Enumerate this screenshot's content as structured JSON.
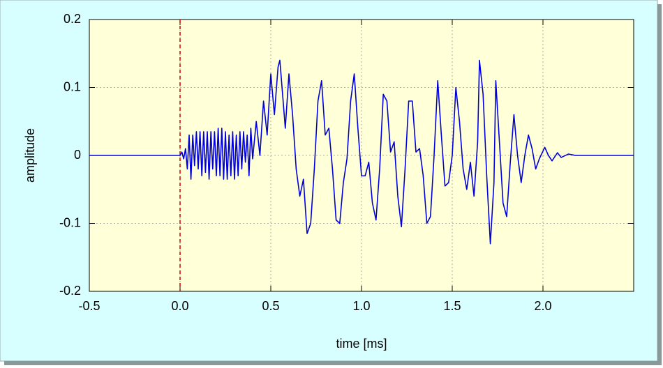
{
  "chart_data": {
    "type": "line",
    "x_label": "time [ms]",
    "y_label": "amplitude",
    "xlim": [
      -0.5,
      2.5
    ],
    "ylim": [
      -0.2,
      0.2
    ],
    "xticks": [
      -0.5,
      {
        "value": 0,
        "label": "0.0"
      },
      0.5,
      {
        "value": 1,
        "label": "1.0"
      },
      1.5,
      {
        "value": 2,
        "label": "2.0"
      }
    ],
    "yticks": [
      -0.2,
      -0.1,
      0,
      0.1,
      0.2
    ],
    "grid": true,
    "vline": {
      "x": 0,
      "color": "#cc0000",
      "style": "dashed"
    },
    "series": [
      {
        "color": "#0000dd",
        "x": [
          -0.5,
          0,
          0.01,
          0.02,
          0.03,
          0.04,
          0.05,
          0.06,
          0.07,
          0.08,
          0.09,
          0.1,
          0.11,
          0.12,
          0.13,
          0.14,
          0.15,
          0.16,
          0.17,
          0.18,
          0.19,
          0.2,
          0.21,
          0.22,
          0.23,
          0.24,
          0.25,
          0.26,
          0.27,
          0.28,
          0.29,
          0.3,
          0.31,
          0.32,
          0.33,
          0.34,
          0.35,
          0.36,
          0.37,
          0.38,
          0.39,
          0.4,
          0.42,
          0.44,
          0.46,
          0.48,
          0.5,
          0.52,
          0.54,
          0.55,
          0.58,
          0.6,
          0.62,
          0.64,
          0.66,
          0.68,
          0.7,
          0.72,
          0.74,
          0.76,
          0.78,
          0.8,
          0.82,
          0.84,
          0.86,
          0.88,
          0.9,
          0.92,
          0.94,
          0.96,
          0.98,
          1,
          1.02,
          1.04,
          1.06,
          1.08,
          1.1,
          1.12,
          1.14,
          1.16,
          1.18,
          1.2,
          1.22,
          1.24,
          1.26,
          1.28,
          1.3,
          1.32,
          1.34,
          1.36,
          1.38,
          1.4,
          1.42,
          1.44,
          1.46,
          1.48,
          1.5,
          1.52,
          1.54,
          1.56,
          1.58,
          1.6,
          1.62,
          1.64,
          1.65,
          1.67,
          1.69,
          1.71,
          1.73,
          1.74,
          1.76,
          1.78,
          1.8,
          1.82,
          1.84,
          1.86,
          1.88,
          1.9,
          1.92,
          1.94,
          1.96,
          1.98,
          2.01,
          2.03,
          2.05,
          2.08,
          2.1,
          2.14,
          2.18,
          2.5
        ],
        "values": [
          0,
          0,
          0.005,
          -0.005,
          0.01,
          -0.02,
          0.03,
          -0.035,
          0.03,
          -0.015,
          0.035,
          -0.02,
          0.035,
          -0.03,
          0.035,
          -0.025,
          0.035,
          -0.035,
          0.035,
          -0.02,
          0.035,
          -0.03,
          0.04,
          -0.03,
          0.04,
          -0.035,
          0.035,
          -0.035,
          0.03,
          -0.03,
          0.035,
          -0.035,
          0.03,
          -0.03,
          0.035,
          -0.02,
          0.035,
          -0.01,
          0.03,
          -0.03,
          0.04,
          -0.005,
          0.05,
          0,
          0.08,
          0.03,
          0.12,
          0.06,
          0.13,
          0.14,
          0.04,
          0.12,
          0.06,
          -0.02,
          -0.06,
          -0.035,
          -0.115,
          -0.1,
          -0.02,
          0.08,
          0.11,
          0.03,
          0.04,
          -0.02,
          -0.095,
          -0.1,
          -0.04,
          -0.005,
          0.08,
          0.12,
          0.04,
          -0.03,
          -0.03,
          -0.01,
          -0.07,
          -0.095,
          -0.02,
          0.09,
          0.08,
          0.005,
          0.02,
          -0.06,
          -0.105,
          -0.02,
          0.08,
          0.08,
          0.005,
          0.01,
          -0.03,
          -0.1,
          -0.09,
          0,
          0.11,
          0.03,
          -0.045,
          -0.04,
          0,
          0.1,
          0.05,
          -0.02,
          -0.05,
          -0.01,
          -0.06,
          0.02,
          0.14,
          0.09,
          -0.03,
          -0.13,
          -0.04,
          0.11,
          0.02,
          -0.07,
          -0.09,
          -0.01,
          0.06,
          0,
          -0.04,
          0,
          0.03,
          0.01,
          -0.02,
          -0.005,
          0.012,
          0,
          -0.008,
          0.004,
          -0.003,
          0.002,
          0,
          0
        ]
      }
    ]
  }
}
